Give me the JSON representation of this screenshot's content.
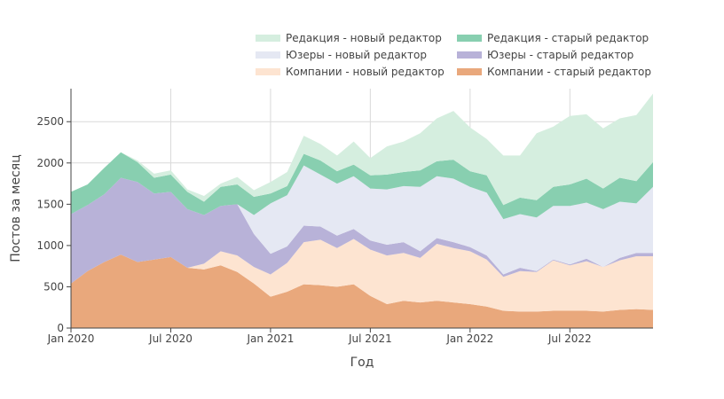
{
  "chart_data": {
    "type": "area",
    "stacked": true,
    "xlabel": "Год",
    "ylabel": "Постов за месяц",
    "ylim": [
      0,
      2900
    ],
    "yticks": [
      0,
      500,
      1000,
      1500,
      2000,
      2500
    ],
    "xrange": [
      "2020-01",
      "2022-12"
    ],
    "xticks": [
      {
        "month": "2020-01",
        "label": "Jan 2020"
      },
      {
        "month": "2020-07",
        "label": "Jul 2020"
      },
      {
        "month": "2021-01",
        "label": "Jan 2021"
      },
      {
        "month": "2021-07",
        "label": "Jul 2021"
      },
      {
        "month": "2022-01",
        "label": "Jan 2022"
      },
      {
        "month": "2022-07",
        "label": "Jul 2022"
      }
    ],
    "months": [
      "2020-01",
      "2020-02",
      "2020-03",
      "2020-04",
      "2020-05",
      "2020-06",
      "2020-07",
      "2020-08",
      "2020-09",
      "2020-10",
      "2020-11",
      "2020-12",
      "2021-01",
      "2021-02",
      "2021-03",
      "2021-04",
      "2021-05",
      "2021-06",
      "2021-07",
      "2021-08",
      "2021-09",
      "2021-10",
      "2021-11",
      "2021-12",
      "2022-01",
      "2022-02",
      "2022-03",
      "2022-04",
      "2022-05",
      "2022-06",
      "2022-07",
      "2022-08",
      "2022-09",
      "2022-10",
      "2022-11",
      "2022-12"
    ],
    "series": [
      {
        "name": "Компании - старый редактор",
        "color": "#e9a87c",
        "values": [
          540,
          690,
          800,
          890,
          800,
          830,
          860,
          730,
          710,
          760,
          680,
          540,
          380,
          440,
          530,
          520,
          500,
          530,
          390,
          290,
          330,
          310,
          330,
          310,
          290,
          260,
          210,
          200,
          200,
          210,
          210,
          210,
          200,
          220,
          230,
          220
        ]
      },
      {
        "name": "Компании - новый редактор",
        "color": "#fde4d1",
        "values": [
          0,
          0,
          0,
          0,
          0,
          0,
          0,
          0,
          70,
          170,
          200,
          200,
          270,
          350,
          510,
          550,
          470,
          550,
          560,
          590,
          580,
          540,
          690,
          660,
          640,
          570,
          410,
          490,
          480,
          610,
          550,
          600,
          540,
          600,
          640,
          650
        ]
      },
      {
        "name": "Юзеры - старый редактор",
        "color": "#b8b2d8",
        "values": [
          840,
          800,
          820,
          930,
          970,
          800,
          790,
          710,
          590,
          550,
          620,
          400,
          250,
          200,
          200,
          160,
          150,
          120,
          110,
          130,
          130,
          80,
          70,
          70,
          50,
          50,
          30,
          40,
          10,
          10,
          10,
          30,
          0,
          30,
          40,
          40
        ]
      },
      {
        "name": "Юзеры - новый редактор",
        "color": "#e5e8f3",
        "values": [
          0,
          0,
          0,
          0,
          0,
          0,
          0,
          0,
          0,
          0,
          0,
          230,
          610,
          620,
          730,
          630,
          630,
          640,
          630,
          670,
          680,
          780,
          750,
          770,
          730,
          760,
          670,
          650,
          650,
          650,
          710,
          680,
          700,
          680,
          600,
          800
        ]
      },
      {
        "name": "Редакция - старый редактор",
        "color": "#88cfb0",
        "values": [
          270,
          250,
          320,
          310,
          240,
          190,
          210,
          210,
          160,
          230,
          240,
          220,
          120,
          110,
          140,
          170,
          150,
          140,
          160,
          180,
          170,
          200,
          180,
          230,
          190,
          210,
          170,
          200,
          210,
          230,
          260,
          290,
          250,
          290,
          270,
          300
        ]
      },
      {
        "name": "Редакция - новый редактор",
        "color": "#d5eedf",
        "values": [
          0,
          0,
          0,
          0,
          20,
          50,
          50,
          30,
          70,
          40,
          90,
          80,
          140,
          170,
          220,
          200,
          190,
          280,
          210,
          340,
          370,
          450,
          520,
          590,
          530,
          440,
          600,
          510,
          810,
          730,
          830,
          780,
          730,
          720,
          800,
          830
        ]
      }
    ],
    "legend": {
      "placement": "top-right",
      "items": [
        {
          "label": "Редакция - новый редактор",
          "color": "#d5eedf"
        },
        {
          "label": "Редакция - старый редактор",
          "color": "#88cfb0"
        },
        {
          "label": "Юзеры - новый редактор",
          "color": "#e5e8f3"
        },
        {
          "label": "Юзеры - старый редактор",
          "color": "#b8b2d8"
        },
        {
          "label": "Компании - новый редактор",
          "color": "#fde4d1"
        },
        {
          "label": "Компании - старый редактор",
          "color": "#e9a87c"
        }
      ]
    }
  }
}
